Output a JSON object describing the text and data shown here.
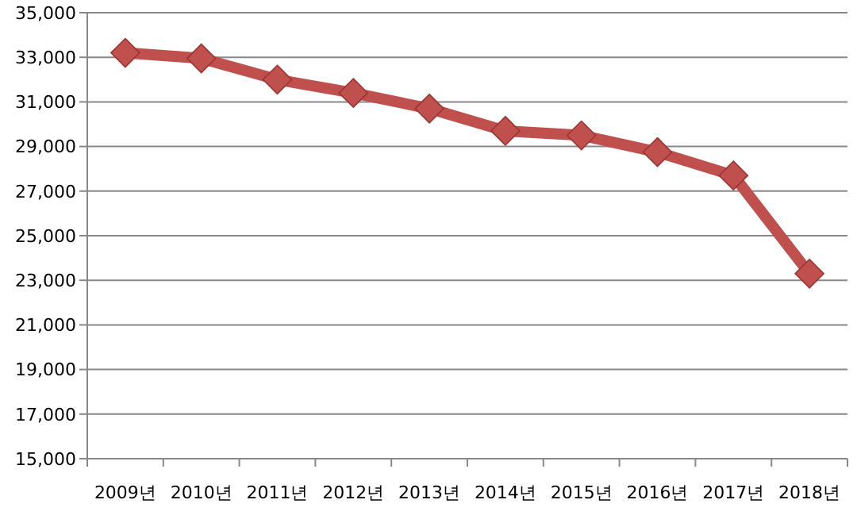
{
  "chart_data": {
    "type": "line",
    "categories": [
      "2009년",
      "2010년",
      "2011년",
      "2012년",
      "2013년",
      "2014년",
      "2015년",
      "2016년",
      "2017년",
      "2018년"
    ],
    "series": [
      {
        "color": "#c0504d",
        "values": [
          33200,
          32950,
          32000,
          31400,
          30700,
          29700,
          29500,
          28750,
          27700,
          23300
        ]
      }
    ],
    "ylim": [
      15000,
      35000
    ],
    "yticks": [
      {
        "value": 15000,
        "label": "15,000"
      },
      {
        "value": 17000,
        "label": "17,000"
      },
      {
        "value": 19000,
        "label": "19,000"
      },
      {
        "value": 21000,
        "label": "21,000"
      },
      {
        "value": 23000,
        "label": "23,000"
      },
      {
        "value": 25000,
        "label": "25,000"
      },
      {
        "value": 27000,
        "label": "27,000"
      },
      {
        "value": 29000,
        "label": "29,000"
      },
      {
        "value": 31000,
        "label": "31,000"
      },
      {
        "value": 33000,
        "label": "33,000"
      },
      {
        "value": 35000,
        "label": "35,000"
      }
    ],
    "grid": "y",
    "marker": "diamond",
    "line_style": "solid"
  }
}
